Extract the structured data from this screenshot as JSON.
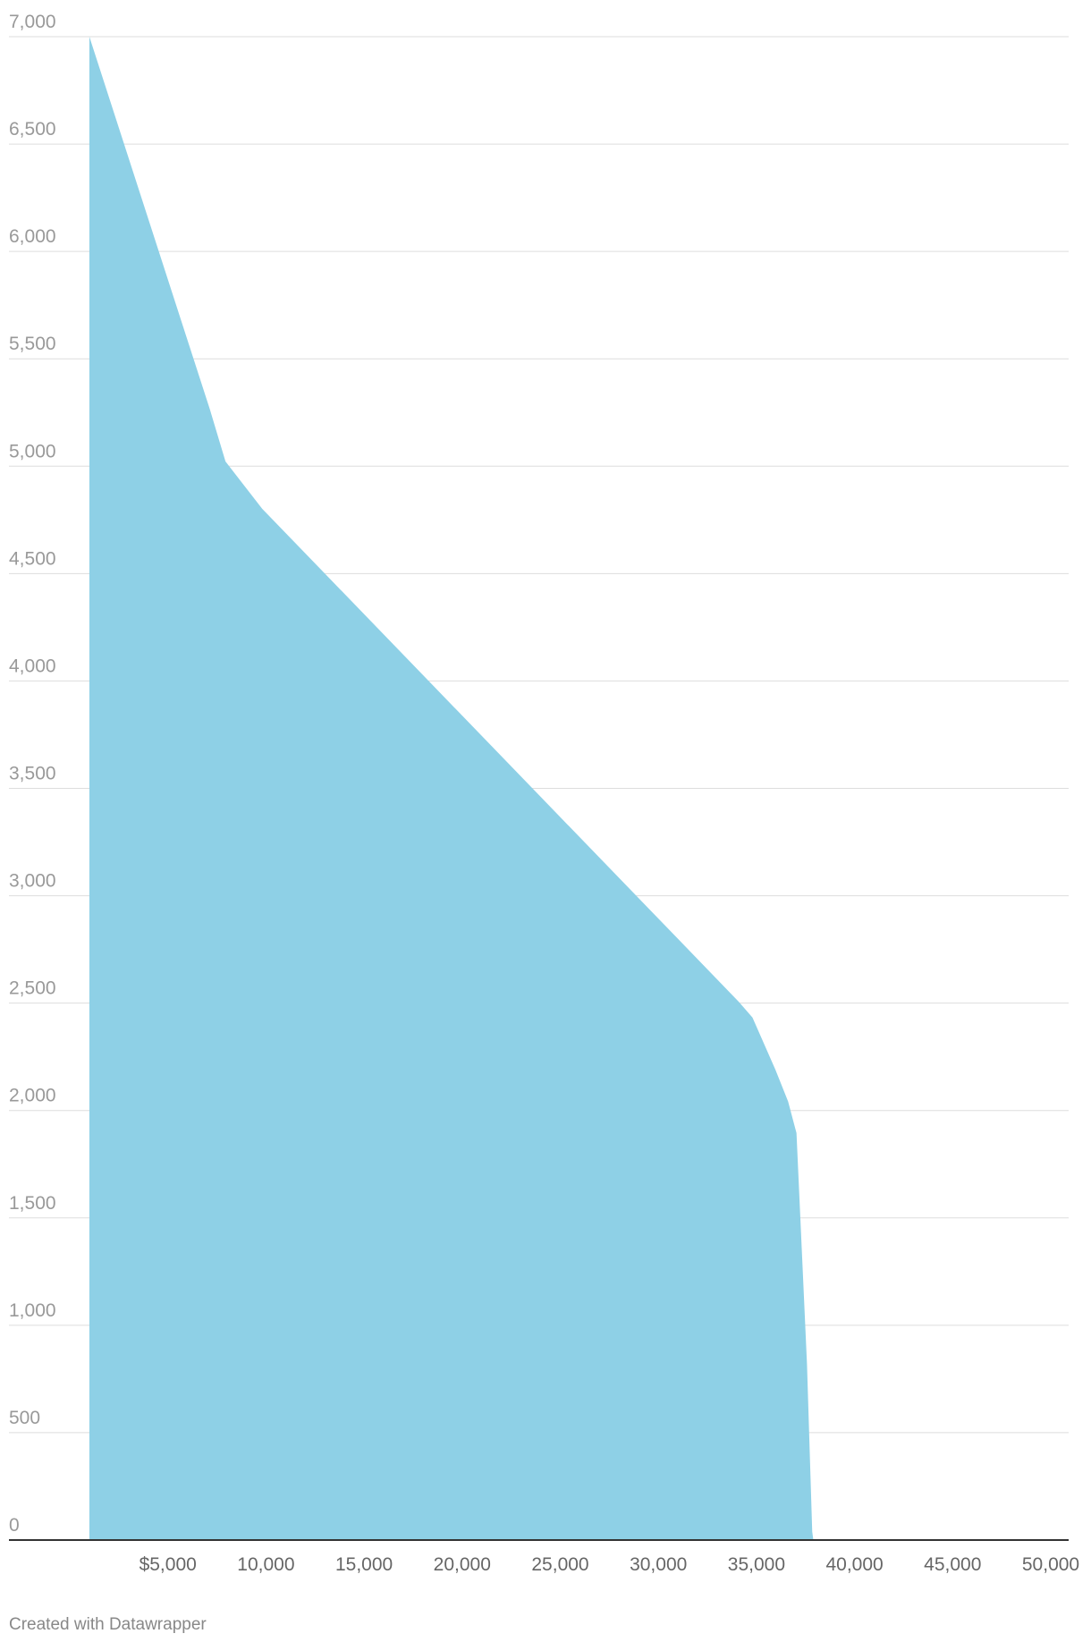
{
  "chart_data": {
    "type": "area",
    "x": [
      1000,
      7137,
      7938,
      9808,
      34103,
      34797,
      35972,
      36613,
      37040,
      37575,
      37842,
      37900
    ],
    "values": [
      7000,
      5266,
      5022,
      4802,
      2506,
      2433,
      2189,
      2042,
      1895,
      821,
      39,
      0
    ],
    "color": "#8ccfe5",
    "xlim": [
      0,
      50000
    ],
    "xticks": [
      {
        "value": 5000,
        "label": "$5,000"
      },
      {
        "value": 10000,
        "label": "10,000"
      },
      {
        "value": 15000,
        "label": "15,000"
      },
      {
        "value": 20000,
        "label": "20,000"
      },
      {
        "value": 25000,
        "label": "25,000"
      },
      {
        "value": 30000,
        "label": "30,000"
      },
      {
        "value": 35000,
        "label": "35,000"
      },
      {
        "value": 40000,
        "label": "40,000"
      },
      {
        "value": 45000,
        "label": "45,000"
      },
      {
        "value": 50000,
        "label": "50,000"
      }
    ],
    "ylim": [
      0,
      7000
    ],
    "yticks": [
      0,
      500,
      {
        "value": 1000,
        "label": "1,000"
      },
      {
        "value": 1500,
        "label": "1,500"
      },
      {
        "value": 2000,
        "label": "2,000"
      },
      {
        "value": 2500,
        "label": "2,500"
      },
      {
        "value": 3000,
        "label": "3,000"
      },
      {
        "value": 3500,
        "label": "3,500"
      },
      {
        "value": 4000,
        "label": "4,000"
      },
      {
        "value": 4500,
        "label": "4,500"
      },
      {
        "value": 5000,
        "label": "5,000"
      },
      {
        "value": 5500,
        "label": "5,500"
      },
      {
        "value": 6000,
        "label": "6,000"
      },
      {
        "value": 6500,
        "label": "6,500"
      },
      {
        "value": 7000,
        "label": "7,000"
      }
    ],
    "grid": true,
    "footer": "Created with Datawrapper"
  }
}
